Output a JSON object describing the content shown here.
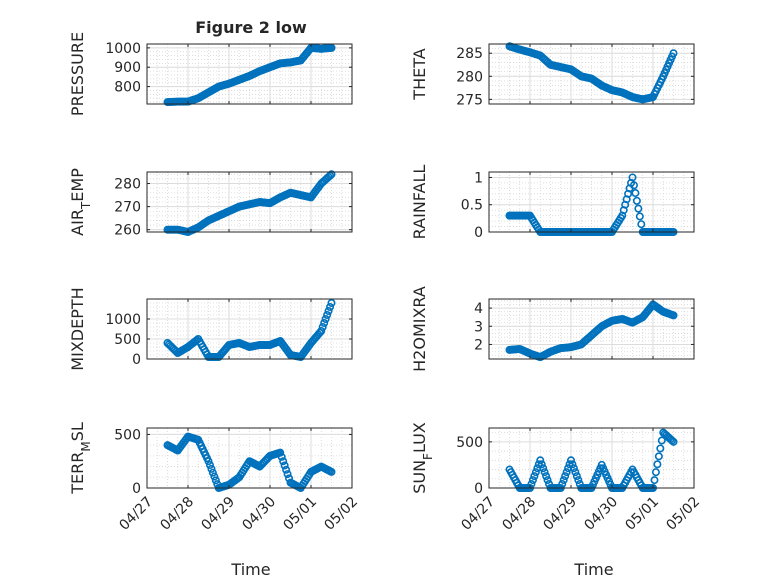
{
  "figure_title": "Figure 2 low",
  "xlabel": "Time",
  "chart_data": [
    {
      "type": "scatter",
      "title": "Figure 2 low",
      "ylabel": "PRESSURE",
      "ylim": [
        710,
        1020
      ],
      "yticks": [
        800,
        900,
        1000
      ],
      "xlabel": "",
      "xlim": [
        "04/27",
        "05/02"
      ],
      "xticks": [
        "04/27",
        "04/28",
        "04/29",
        "04/30",
        "05/01",
        "05/02"
      ],
      "show_xticklabels": false,
      "grid": true,
      "series": [
        {
          "color": "#0072BD",
          "x": [
            "04/27 12:00",
            "04/27 18:00",
            "04/28 00:00",
            "04/28 06:00",
            "04/28 12:00",
            "04/28 18:00",
            "04/29 00:00",
            "04/29 06:00",
            "04/29 12:00",
            "04/29 18:00",
            "04/30 00:00",
            "04/30 06:00",
            "04/30 12:00",
            "04/30 18:00",
            "05/01 00:00",
            "05/01 06:00",
            "05/01 12:00"
          ],
          "y": [
            720,
            722,
            722,
            740,
            770,
            800,
            815,
            835,
            855,
            880,
            900,
            920,
            925,
            935,
            1000,
            995,
            1000
          ]
        }
      ]
    },
    {
      "type": "scatter",
      "ylabel": "THETA",
      "ylim": [
        274,
        287
      ],
      "yticks": [
        275,
        280,
        285
      ],
      "xlim": [
        "04/27",
        "05/02"
      ],
      "xticks": [
        "04/27",
        "04/28",
        "04/29",
        "04/30",
        "05/01",
        "05/02"
      ],
      "show_xticklabels": false,
      "grid": true,
      "series": [
        {
          "color": "#0072BD",
          "x": [
            "04/27 12:00",
            "04/27 18:00",
            "04/28 00:00",
            "04/28 06:00",
            "04/28 12:00",
            "04/28 18:00",
            "04/29 00:00",
            "04/29 06:00",
            "04/29 12:00",
            "04/29 18:00",
            "04/30 00:00",
            "04/30 06:00",
            "04/30 12:00",
            "04/30 18:00",
            "05/01 00:00",
            "05/01 06:00",
            "05/01 12:00"
          ],
          "y": [
            286.5,
            285.8,
            285.2,
            284.5,
            282.5,
            282.0,
            281.5,
            280.0,
            279.5,
            278.0,
            277.0,
            276.5,
            275.5,
            275.0,
            275.5,
            280.0,
            285.0
          ]
        }
      ]
    },
    {
      "type": "scatter",
      "ylabel": "AIR_TEMP",
      "ylim": [
        259,
        285
      ],
      "yticks": [
        260,
        270,
        280
      ],
      "xlim": [
        "04/27",
        "05/02"
      ],
      "xticks": [
        "04/27",
        "04/28",
        "04/29",
        "04/30",
        "05/01",
        "05/02"
      ],
      "show_xticklabels": false,
      "grid": true,
      "series": [
        {
          "color": "#0072BD",
          "x": [
            "04/27 12:00",
            "04/27 18:00",
            "04/28 00:00",
            "04/28 06:00",
            "04/28 12:00",
            "04/28 18:00",
            "04/29 00:00",
            "04/29 06:00",
            "04/29 12:00",
            "04/29 18:00",
            "04/30 00:00",
            "04/30 06:00",
            "04/30 12:00",
            "04/30 18:00",
            "05/01 00:00",
            "05/01 06:00",
            "05/01 12:00"
          ],
          "y": [
            260,
            260,
            259,
            261,
            264,
            266,
            268,
            270,
            271,
            272,
            271.5,
            274,
            276,
            275,
            274,
            280,
            284
          ]
        }
      ]
    },
    {
      "type": "scatter",
      "ylabel": "RAINFALL",
      "ylim": [
        0,
        1.1
      ],
      "yticks": [
        0,
        0.5,
        1
      ],
      "xlim": [
        "04/27",
        "05/02"
      ],
      "xticks": [
        "04/27",
        "04/28",
        "04/29",
        "04/30",
        "05/01",
        "05/02"
      ],
      "show_xticklabels": false,
      "grid": true,
      "series": [
        {
          "color": "#0072BD",
          "x": [
            "04/27 12:00",
            "04/27 18:00",
            "04/28 00:00",
            "04/28 06:00",
            "04/28 12:00",
            "04/28 18:00",
            "04/29 00:00",
            "04/29 06:00",
            "04/29 12:00",
            "04/29 18:00",
            "04/30 00:00",
            "04/30 06:00",
            "04/30 12:00",
            "04/30 18:00",
            "05/01 00:00",
            "05/01 06:00",
            "05/01 12:00"
          ],
          "y": [
            0.3,
            0.3,
            0.3,
            0,
            0,
            0,
            0,
            0,
            0,
            0,
            0,
            0.3,
            1,
            0,
            0,
            0,
            0
          ]
        }
      ]
    },
    {
      "type": "scatter",
      "ylabel": "MIXDEPTH",
      "ylim": [
        0,
        1500
      ],
      "yticks": [
        0,
        500,
        1000
      ],
      "xlim": [
        "04/27",
        "05/02"
      ],
      "xticks": [
        "04/27",
        "04/28",
        "04/29",
        "04/30",
        "05/01",
        "05/02"
      ],
      "show_xticklabels": false,
      "grid": true,
      "series": [
        {
          "color": "#0072BD",
          "x": [
            "04/27 12:00",
            "04/27 18:00",
            "04/28 00:00",
            "04/28 06:00",
            "04/28 12:00",
            "04/28 18:00",
            "04/29 00:00",
            "04/29 06:00",
            "04/29 12:00",
            "04/29 18:00",
            "04/30 00:00",
            "04/30 06:00",
            "04/30 12:00",
            "04/30 18:00",
            "05/01 00:00",
            "05/01 06:00",
            "05/01 12:00"
          ],
          "y": [
            400,
            150,
            300,
            500,
            50,
            50,
            350,
            400,
            300,
            350,
            350,
            450,
            100,
            50,
            400,
            700,
            1400
          ]
        }
      ]
    },
    {
      "type": "scatter",
      "ylabel": "H2OMIXRA",
      "ylim": [
        1.2,
        4.5
      ],
      "yticks": [
        2,
        3,
        4
      ],
      "xlim": [
        "04/27",
        "05/02"
      ],
      "xticks": [
        "04/27",
        "04/28",
        "04/29",
        "04/30",
        "05/01",
        "05/02"
      ],
      "show_xticklabels": false,
      "grid": true,
      "series": [
        {
          "color": "#0072BD",
          "x": [
            "04/27 12:00",
            "04/27 18:00",
            "04/28 00:00",
            "04/28 06:00",
            "04/28 12:00",
            "04/28 18:00",
            "04/29 00:00",
            "04/29 06:00",
            "04/29 12:00",
            "04/29 18:00",
            "04/30 00:00",
            "04/30 06:00",
            "04/30 12:00",
            "04/30 18:00",
            "05/01 00:00",
            "05/01 06:00",
            "05/01 12:00"
          ],
          "y": [
            1.7,
            1.75,
            1.5,
            1.3,
            1.6,
            1.8,
            1.85,
            2.0,
            2.5,
            3.0,
            3.3,
            3.4,
            3.2,
            3.5,
            4.2,
            3.8,
            3.6
          ]
        }
      ]
    },
    {
      "type": "scatter",
      "ylabel": "TERR_MSL",
      "ylim": [
        0,
        560
      ],
      "yticks": [
        0,
        500
      ],
      "xlim": [
        "04/27",
        "05/02"
      ],
      "xticks": [
        "04/27",
        "04/28",
        "04/29",
        "04/30",
        "05/01",
        "05/02"
      ],
      "show_xticklabels": true,
      "grid": true,
      "series": [
        {
          "color": "#0072BD",
          "x": [
            "04/27 12:00",
            "04/27 18:00",
            "04/28 00:00",
            "04/28 06:00",
            "04/28 12:00",
            "04/28 18:00",
            "04/29 00:00",
            "04/29 06:00",
            "04/29 12:00",
            "04/29 18:00",
            "04/30 00:00",
            "04/30 06:00",
            "04/30 12:00",
            "04/30 18:00",
            "05/01 00:00",
            "05/01 06:00",
            "05/01 12:00"
          ],
          "y": [
            400,
            350,
            480,
            450,
            250,
            0,
            30,
            100,
            250,
            200,
            300,
            330,
            50,
            0,
            150,
            200,
            150
          ]
        }
      ]
    },
    {
      "type": "scatter",
      "ylabel": "SUN_FLUX",
      "ylim": [
        0,
        650
      ],
      "yticks": [
        0,
        500
      ],
      "xlim": [
        "04/27",
        "05/02"
      ],
      "xticks": [
        "04/27",
        "04/28",
        "04/29",
        "04/30",
        "05/01",
        "05/02"
      ],
      "show_xticklabels": true,
      "grid": true,
      "series": [
        {
          "color": "#0072BD",
          "x": [
            "04/27 12:00",
            "04/27 18:00",
            "04/28 00:00",
            "04/28 06:00",
            "04/28 12:00",
            "04/28 18:00",
            "04/29 00:00",
            "04/29 06:00",
            "04/29 12:00",
            "04/29 18:00",
            "04/30 00:00",
            "04/30 06:00",
            "04/30 12:00",
            "04/30 18:00",
            "05/01 00:00",
            "05/01 06:00",
            "05/01 12:00"
          ],
          "y": [
            200,
            0,
            0,
            300,
            0,
            0,
            300,
            0,
            0,
            250,
            0,
            0,
            200,
            0,
            0,
            600,
            500
          ]
        }
      ]
    }
  ]
}
